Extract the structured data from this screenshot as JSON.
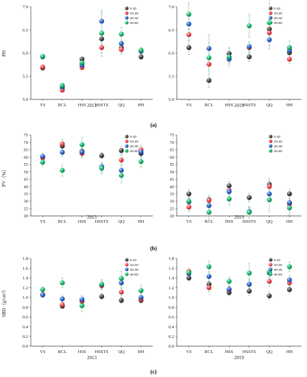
{
  "figure": {
    "panel_labels": [
      "(a)",
      "(b)",
      "(c)"
    ]
  },
  "colors": {
    "0-10": "#3c3c3c",
    "10-20": "#e8474c",
    "20-40": "#2a64c8",
    "40-60": "#1db46a",
    "errorbar": "#9ccfb8",
    "axis": "#333333"
  },
  "chart_data": [
    {
      "type": "scatter",
      "id": "pH",
      "ylabel": "PH",
      "ylim": [
        5.0,
        7.0
      ],
      "yticks": [
        "5.0",
        "5.5",
        "6.0",
        "6.5",
        "7.0"
      ],
      "legend": [
        "0-10",
        "10-20",
        "20-40",
        "40-60"
      ],
      "legend_position": "top-right",
      "subplots": [
        {
          "year": "2013",
          "categories": [
            "YS",
            "RCL",
            "HSS",
            "HSSTS",
            "QQ",
            "HH"
          ],
          "series": [
            {
              "name": "0-10",
              "values": [
                5.68,
                5.25,
                5.87,
                6.31,
                6.12,
                5.92
              ],
              "err": [
                0.04,
                0.04,
                0.05,
                0.12,
                0.08,
                0.06
              ]
            },
            {
              "name": "10-20",
              "values": [
                5.7,
                5.2,
                5.69,
                6.12,
                6.08,
                6.05
              ],
              "err": [
                0.04,
                0.04,
                0.05,
                0.12,
                0.1,
                0.06
              ]
            },
            {
              "name": "20-40",
              "values": [
                5.92,
                5.27,
                5.74,
                6.69,
                6.21,
                6.04
              ],
              "err": [
                0.05,
                0.04,
                0.08,
                0.2,
                0.2,
                0.08
              ]
            },
            {
              "name": "40-60",
              "values": [
                5.93,
                5.3,
                5.79,
                6.43,
                6.41,
                6.06
              ],
              "err": [
                0.04,
                0.05,
                0.1,
                0.5,
                0.15,
                0.06
              ]
            }
          ]
        },
        {
          "year": "2019",
          "categories": [
            "YS",
            "RCL",
            "HSS",
            "HSSTS",
            "QQ",
            "HH"
          ],
          "series": [
            {
              "name": "0-10",
              "values": [
                6.12,
                5.41,
                5.99,
                5.92,
                6.52,
                6.01
              ],
              "err": [
                0.15,
                0.15,
                0.1,
                0.1,
                0.2,
                0.1
              ]
            },
            {
              "name": "10-20",
              "values": [
                6.4,
                5.76,
                5.9,
                6.12,
                6.44,
                5.87
              ],
              "err": [
                0.12,
                0.15,
                0.1,
                0.12,
                0.2,
                0.1
              ]
            },
            {
              "name": "20-40",
              "values": [
                6.63,
                6.1,
                5.87,
                6.14,
                6.29,
                6.06
              ],
              "err": [
                0.12,
                0.12,
                0.1,
                0.1,
                0.2,
                0.1
              ]
            },
            {
              "name": "40-60",
              "values": [
                6.84,
                5.9,
                5.92,
                6.59,
                6.66,
                6.12
              ],
              "err": [
                0.25,
                0.5,
                0.2,
                0.25,
                0.5,
                0.15
              ]
            }
          ]
        }
      ]
    },
    {
      "type": "scatter",
      "id": "PV",
      "ylabel": "PV（%）",
      "ylim": [
        20,
        75
      ],
      "yticks": [
        "20",
        "25",
        "30",
        "35",
        "40",
        "45",
        "50",
        "55",
        "60",
        "65",
        "70",
        "75"
      ],
      "legend": [
        "0-10",
        "10-20",
        "20-40",
        "40-60"
      ],
      "legend_position": "top-right",
      "subplots": [
        {
          "year": "2013",
          "categories": [
            "YS",
            "RCL",
            "HSS",
            "HSSTS",
            "QQ",
            "HH"
          ],
          "series": [
            {
              "name": "0-10",
              "values": [
                59.8,
                67.5,
                64.0,
                61.0,
                64.5,
                62.5
              ],
              "err": [
                2,
                3,
                3,
                2,
                3,
                3
              ]
            },
            {
              "name": "10-20",
              "values": [
                59.5,
                69.0,
                62.5,
                52.5,
                58.0,
                65.0
              ],
              "err": [
                2,
                3,
                3,
                3,
                4,
                3
              ]
            },
            {
              "name": "20-40",
              "values": [
                60.5,
                63.3,
                63.5,
                53.5,
                51.0,
                63.5
              ],
              "err": [
                2,
                3,
                3,
                3,
                4,
                3
              ]
            },
            {
              "name": "40-60",
              "values": [
                56.5,
                51.0,
                68.5,
                52.5,
                47.5,
                57.0
              ],
              "err": [
                3,
                4,
                5,
                4,
                5,
                4
              ]
            }
          ]
        },
        {
          "year": "2019",
          "categories": [
            "YS",
            "RCL",
            "HSS",
            "HSSTS",
            "QQ",
            "HH"
          ],
          "series": [
            {
              "name": "0-10",
              "values": [
                35.0,
                31.0,
                40.5,
                32.5,
                41.5,
                35.0
              ],
              "err": [
                3,
                3,
                3,
                3,
                4,
                3
              ]
            },
            {
              "name": "10-20",
              "values": [
                26.0,
                30.5,
                37.5,
                22.5,
                40.0,
                28.0
              ],
              "err": [
                3,
                3,
                3,
                3,
                4,
                3
              ]
            },
            {
              "name": "20-40",
              "values": [
                29.5,
                27.0,
                36.5,
                23.0,
                35.0,
                29.0
              ],
              "err": [
                3,
                3,
                3,
                3,
                4,
                3
              ]
            },
            {
              "name": "40-60",
              "values": [
                30.0,
                22.5,
                31.5,
                22.5,
                31.0,
                25.5
              ],
              "err": [
                3,
                6,
                4,
                4,
                8,
                5
              ]
            }
          ]
        }
      ]
    },
    {
      "type": "scatter",
      "id": "SBD",
      "ylabel": "SBD（g/cm³）",
      "ylim": [
        0.0,
        1.8
      ],
      "yticks": [
        "0.0",
        "0.2",
        "0.4",
        "0.6",
        "0.8",
        "1.0",
        "1.2",
        "1.4",
        "1.6",
        "1.8"
      ],
      "legend": [
        "0-10",
        "10-20",
        "20-40",
        "40-60"
      ],
      "legend_position": "top-right",
      "subplots": [
        {
          "year": "2013",
          "categories": [
            "YS",
            "RCL",
            "HSS",
            "HSSTS",
            "QQ",
            "HH"
          ],
          "series": [
            {
              "name": "0-10",
              "values": [
                1.06,
                0.82,
                0.92,
                1.02,
                0.94,
                0.94
              ],
              "err": [
                0.05,
                0.05,
                0.06,
                0.06,
                0.06,
                0.06
              ]
            },
            {
              "name": "10-20",
              "values": [
                1.06,
                0.85,
                0.93,
                1.24,
                1.11,
                0.96
              ],
              "err": [
                0.05,
                0.05,
                0.06,
                0.08,
                0.08,
                0.06
              ]
            },
            {
              "name": "20-40",
              "values": [
                1.05,
                0.97,
                0.96,
                1.26,
                1.3,
                1.0
              ],
              "err": [
                0.05,
                0.06,
                0.08,
                0.08,
                0.1,
                0.08
              ]
            },
            {
              "name": "40-60",
              "values": [
                1.16,
                1.3,
                0.83,
                1.27,
                1.39,
                1.14
              ],
              "err": [
                0.06,
                0.1,
                0.12,
                0.1,
                0.15,
                0.12
              ]
            }
          ]
        },
        {
          "year": "2019",
          "categories": [
            "YS",
            "RCL",
            "HSS",
            "HSSTS",
            "QQ",
            "HH"
          ],
          "series": [
            {
              "name": "0-10",
              "values": [
                1.4,
                1.27,
                1.1,
                1.13,
                1.03,
                1.16
              ],
              "err": [
                0.06,
                0.08,
                0.06,
                0.08,
                0.08,
                0.08
              ]
            },
            {
              "name": "10-20",
              "values": [
                1.53,
                1.2,
                1.16,
                1.27,
                1.33,
                1.3
              ],
              "err": [
                0.06,
                0.08,
                0.06,
                0.08,
                0.1,
                0.08
              ]
            },
            {
              "name": "20-40",
              "values": [
                1.49,
                1.43,
                1.17,
                1.27,
                1.5,
                1.36
              ],
              "err": [
                0.06,
                0.1,
                0.06,
                0.1,
                0.1,
                0.08
              ]
            },
            {
              "name": "40-60",
              "values": [
                1.51,
                1.63,
                1.33,
                1.5,
                1.53,
                1.63
              ],
              "err": [
                0.08,
                0.12,
                0.08,
                0.2,
                0.15,
                0.1
              ]
            }
          ]
        }
      ]
    }
  ]
}
